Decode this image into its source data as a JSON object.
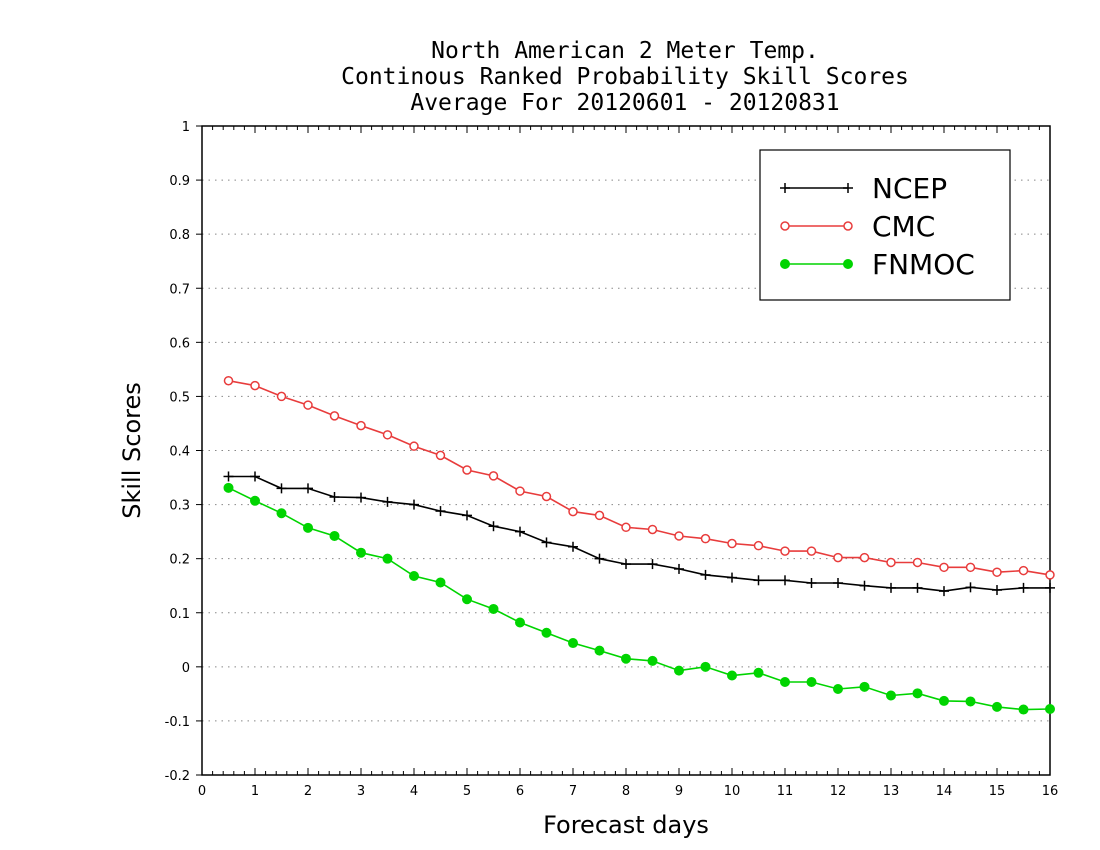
{
  "chart_data": {
    "type": "line",
    "title": [
      "North American 2 Meter Temp.",
      "Continous Ranked Probability Skill Scores",
      "Average For 20120601 - 20120831"
    ],
    "xlabel": "Forecast days",
    "ylabel": "Skill Scores",
    "xlim": [
      0,
      16
    ],
    "ylim": [
      -0.2,
      1
    ],
    "xticks": [
      "0",
      "1",
      "2",
      "3",
      "4",
      "5",
      "6",
      "7",
      "8",
      "9",
      "10",
      "11",
      "12",
      "13",
      "14",
      "15",
      "16"
    ],
    "yticks": [
      "-0.2",
      "-0.1",
      "0",
      "0.1",
      "0.2",
      "0.3",
      "0.4",
      "0.5",
      "0.6",
      "0.7",
      "0.8",
      "0.9",
      "1"
    ],
    "grid": "horizontal-dotted",
    "legend_position": "top-right",
    "x": [
      0.5,
      1,
      1.5,
      2,
      2.5,
      3,
      3.5,
      4,
      4.5,
      5,
      5.5,
      6,
      6.5,
      7,
      7.5,
      8,
      8.5,
      9,
      9.5,
      10,
      10.5,
      11,
      11.5,
      12,
      12.5,
      13,
      13.5,
      14,
      14.5,
      15,
      15.5,
      16
    ],
    "series": [
      {
        "name": "NCEP",
        "color": "#000000",
        "marker": "plus",
        "values": [
          0.352,
          0.352,
          0.33,
          0.33,
          0.314,
          0.313,
          0.305,
          0.3,
          0.288,
          0.28,
          0.26,
          0.25,
          0.23,
          0.222,
          0.2,
          0.19,
          0.19,
          0.181,
          0.17,
          0.165,
          0.16,
          0.16,
          0.155,
          0.155,
          0.15,
          0.146,
          0.146,
          0.14,
          0.147,
          0.142,
          0.146,
          0.146
        ]
      },
      {
        "name": "CMC",
        "color": "#e83c3c",
        "marker": "open-circle",
        "values": [
          0.529,
          0.52,
          0.5,
          0.484,
          0.464,
          0.446,
          0.429,
          0.408,
          0.391,
          0.364,
          0.353,
          0.325,
          0.315,
          0.287,
          0.28,
          0.258,
          0.254,
          0.242,
          0.237,
          0.228,
          0.224,
          0.214,
          0.214,
          0.202,
          0.202,
          0.193,
          0.193,
          0.184,
          0.184,
          0.175,
          0.178,
          0.17
        ]
      },
      {
        "name": "FNMOC",
        "color": "#00d400",
        "marker": "filled-circle",
        "values": [
          0.331,
          0.307,
          0.284,
          0.257,
          0.242,
          0.211,
          0.2,
          0.168,
          0.156,
          0.125,
          0.107,
          0.082,
          0.063,
          0.044,
          0.03,
          0.015,
          0.011,
          -0.007,
          0.0,
          -0.016,
          -0.011,
          -0.028,
          -0.028,
          -0.041,
          -0.037,
          -0.053,
          -0.049,
          -0.063,
          -0.064,
          -0.074,
          -0.079,
          -0.078
        ]
      }
    ]
  }
}
